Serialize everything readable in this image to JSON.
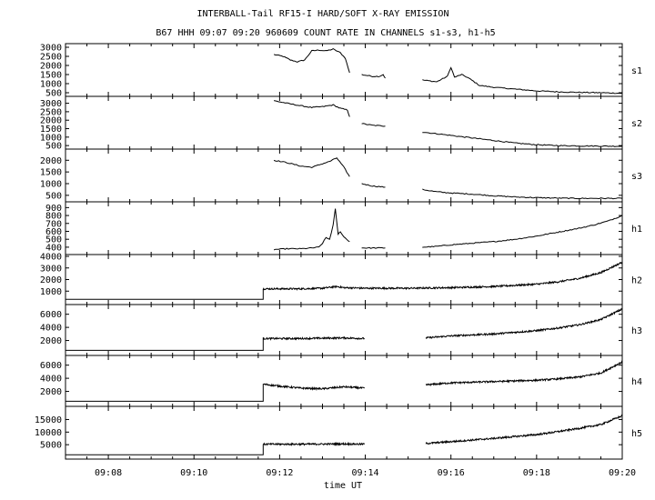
{
  "chart_data": {
    "type": "line",
    "title": "INTERBALL-Tail RF15-I HARD/SOFT X-RAY EMISSION",
    "subtitle": "B67 HHH 09:07 09:20 960609  COUNT RATE IN CHANNELS s1-s3, h1-h5",
    "xlabel": "time UT",
    "x_ticks": [
      "09:08",
      "09:10",
      "09:12",
      "09:14",
      "09:16",
      "09:18",
      "09:20"
    ],
    "x_range": [
      "09:07:00",
      "09:20:00"
    ],
    "grid": false,
    "panels": [
      {
        "name": "s1",
        "ylim": [
          400,
          3100
        ],
        "ticks": [
          "3000",
          "2500",
          "2000",
          "1500",
          "1000",
          "500"
        ],
        "tick_values": [
          3000,
          2500,
          2000,
          1500,
          1000,
          500
        ],
        "series": [
          {
            "x": [
              "09:11:52",
              "09:12:05",
              "09:12:15",
              "09:12:25",
              "09:12:35",
              "09:12:45",
              "09:12:55",
              "09:13:05",
              "09:13:15",
              "09:13:25",
              "09:13:32",
              "09:13:38"
            ],
            "y": [
              2600,
              2500,
              2300,
              2200,
              2300,
              2800,
              2850,
              2800,
              2900,
              2700,
              2400,
              1600
            ]
          },
          {
            "x": [
              "09:13:55",
              "09:14:10",
              "09:14:20",
              "09:14:25",
              "09:14:28"
            ],
            "y": [
              1500,
              1400,
              1400,
              1500,
              1300
            ]
          },
          {
            "x": [
              "09:15:20",
              "09:15:40",
              "09:15:55",
              "09:16:00",
              "09:16:05",
              "09:16:15",
              "09:16:25",
              "09:16:40",
              "09:17:00",
              "09:17:30",
              "09:18:00",
              "09:18:30",
              "09:19:00",
              "09:19:30",
              "09:20:00"
            ],
            "y": [
              1200,
              1100,
              1400,
              1900,
              1350,
              1500,
              1300,
              900,
              800,
              700,
              600,
              550,
              520,
              500,
              470
            ]
          }
        ]
      },
      {
        "name": "s2",
        "ylim": [
          400,
          3300
        ],
        "ticks": [
          "3000",
          "2500",
          "2000",
          "1500",
          "1000",
          "500"
        ],
        "tick_values": [
          3000,
          2500,
          2000,
          1500,
          1000,
          500
        ],
        "series": [
          {
            "x": [
              "09:11:52",
              "09:12:10",
              "09:12:30",
              "09:12:45",
              "09:13:00",
              "09:13:15",
              "09:13:25",
              "09:13:35",
              "09:13:38"
            ],
            "y": [
              3150,
              3000,
              2850,
              2750,
              2800,
              2900,
              2700,
              2600,
              2200
            ]
          },
          {
            "x": [
              "09:13:55",
              "09:14:10",
              "09:14:28"
            ],
            "y": [
              1800,
              1700,
              1650
            ]
          },
          {
            "x": [
              "09:15:20",
              "09:15:40",
              "09:16:00",
              "09:16:30",
              "09:17:00",
              "09:17:30",
              "09:18:00",
              "09:18:30",
              "09:19:00",
              "09:19:30",
              "09:20:00"
            ],
            "y": [
              1300,
              1200,
              1100,
              950,
              800,
              650,
              550,
              500,
              480,
              470,
              460
            ]
          }
        ]
      },
      {
        "name": "s3",
        "ylim": [
          300,
          2400
        ],
        "ticks": [
          "2000",
          "1500",
          "1000",
          "500"
        ],
        "tick_values": [
          2000,
          1500,
          1000,
          500
        ],
        "series": [
          {
            "x": [
              "09:11:52",
              "09:12:10",
              "09:12:30",
              "09:12:45",
              "09:13:00",
              "09:13:10",
              "09:13:20",
              "09:13:30",
              "09:13:38"
            ],
            "y": [
              2000,
              1900,
              1750,
              1700,
              1850,
              1950,
              2100,
              1700,
              1300
            ]
          },
          {
            "x": [
              "09:13:55",
              "09:14:10",
              "09:14:28"
            ],
            "y": [
              1000,
              900,
              850
            ]
          },
          {
            "x": [
              "09:15:20",
              "09:15:40",
              "09:16:00",
              "09:16:30",
              "09:17:00",
              "09:17:30",
              "09:18:00",
              "09:18:30",
              "09:19:00",
              "09:19:30",
              "09:20:00"
            ],
            "y": [
              750,
              650,
              600,
              550,
              480,
              430,
              400,
              380,
              370,
              370,
              370
            ]
          }
        ]
      },
      {
        "name": "h1",
        "ylim": [
          330,
          950
        ],
        "ticks": [
          "900",
          "800",
          "700",
          "600",
          "500",
          "400"
        ],
        "tick_values": [
          900,
          800,
          700,
          600,
          500,
          400
        ],
        "series": [
          {
            "x": [
              "09:11:52",
              "09:12:10",
              "09:12:30",
              "09:12:45",
              "09:12:55",
              "09:13:00",
              "09:13:05",
              "09:13:10",
              "09:13:15",
              "09:13:18",
              "09:13:22",
              "09:13:25",
              "09:13:30",
              "09:13:38"
            ],
            "y": [
              370,
              380,
              380,
              390,
              400,
              450,
              520,
              500,
              680,
              880,
              560,
              600,
              530,
              470
            ]
          },
          {
            "x": [
              "09:13:55",
              "09:14:10",
              "09:14:28"
            ],
            "y": [
              390,
              390,
              390
            ]
          },
          {
            "x": [
              "09:15:20",
              "09:15:40",
              "09:16:00",
              "09:16:30",
              "09:17:00",
              "09:17:30",
              "09:18:00",
              "09:18:30",
              "09:19:00",
              "09:19:20",
              "09:19:40",
              "09:20:00"
            ],
            "y": [
              400,
              410,
              430,
              450,
              470,
              500,
              540,
              590,
              640,
              680,
              730,
              800
            ]
          }
        ]
      },
      {
        "name": "h2",
        "ylim": [
          0,
          4000
        ],
        "ticks": [
          "4000",
          "3000",
          "2000",
          "1000"
        ],
        "tick_values": [
          4000,
          3000,
          2000,
          1000
        ],
        "series": [
          {
            "x": [
              "09:07:00",
              "09:11:37",
              "09:11:37",
              "09:12:30",
              "09:13:00",
              "09:13:20",
              "09:13:30",
              "09:14:00",
              "09:15:00",
              "09:16:00",
              "09:17:00",
              "09:18:00",
              "09:18:30",
              "09:19:00",
              "09:19:30",
              "09:20:00"
            ],
            "y": [
              300,
              300,
              1200,
              1200,
              1250,
              1400,
              1300,
              1250,
              1250,
              1300,
              1400,
              1600,
              1800,
              2100,
              2600,
              3500
            ]
          }
        ]
      },
      {
        "name": "h3",
        "ylim": [
          0,
          7200
        ],
        "ticks": [
          "6000",
          "4000",
          "2000"
        ],
        "tick_values": [
          6000,
          4000,
          2000
        ],
        "series": [
          {
            "x": [
              "09:07:00",
              "09:11:37",
              "09:11:37",
              "09:12:30",
              "09:13:00",
              "09:13:30",
              "09:13:59"
            ],
            "y": [
              500,
              500,
              2300,
              2300,
              2350,
              2400,
              2300
            ]
          },
          {
            "x": [
              "09:15:25",
              "09:16:00",
              "09:17:00",
              "09:18:00",
              "09:18:30",
              "09:19:00",
              "09:19:30",
              "09:20:00"
            ],
            "y": [
              2400,
              2700,
              3000,
              3500,
              3900,
              4400,
              5200,
              6800
            ]
          }
        ]
      },
      {
        "name": "h4",
        "ylim": [
          0,
          7200
        ],
        "ticks": [
          "6000",
          "4000",
          "2000"
        ],
        "tick_values": [
          6000,
          4000,
          2000
        ],
        "series": [
          {
            "x": [
              "09:07:00",
              "09:11:37",
              "09:11:37",
              "09:12:00",
              "09:12:30",
              "09:13:00",
              "09:13:30",
              "09:13:59"
            ],
            "y": [
              500,
              500,
              3100,
              2800,
              2500,
              2400,
              2700,
              2500
            ]
          },
          {
            "x": [
              "09:15:25",
              "09:16:00",
              "09:17:00",
              "09:18:00",
              "09:18:30",
              "09:19:00",
              "09:19:30",
              "09:20:00"
            ],
            "y": [
              3000,
              3300,
              3500,
              3700,
              3900,
              4200,
              4800,
              6500
            ]
          }
        ]
      },
      {
        "name": "h5",
        "ylim": [
          0,
          19500
        ],
        "ticks": [
          "15000",
          "10000",
          "5000"
        ],
        "tick_values": [
          15000,
          10000,
          5000
        ],
        "series": [
          {
            "x": [
              "09:07:00",
              "09:11:37",
              "09:11:37",
              "09:12:30",
              "09:13:30",
              "09:13:59"
            ],
            "y": [
              1000,
              1000,
              5200,
              5200,
              5300,
              5200
            ]
          },
          {
            "x": [
              "09:15:25",
              "09:16:00",
              "09:17:00",
              "09:18:00",
              "09:18:30",
              "09:19:00",
              "09:19:30",
              "09:20:00"
            ],
            "y": [
              5500,
              6200,
              7500,
              9000,
              10200,
              11500,
              13000,
              16500
            ]
          }
        ]
      }
    ]
  }
}
